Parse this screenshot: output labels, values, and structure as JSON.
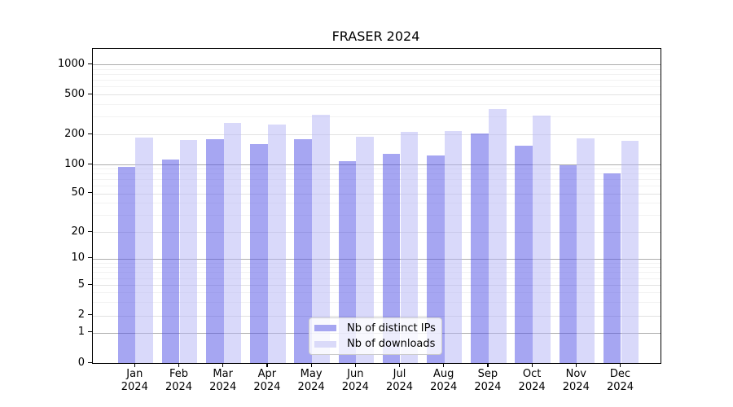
{
  "title": "FRASER 2024",
  "chart_data": {
    "type": "bar",
    "title": "FRASER 2024",
    "categories": [
      "Jan 2024",
      "Feb 2024",
      "Mar 2024",
      "Apr 2024",
      "May 2024",
      "Jun 2024",
      "Jul 2024",
      "Aug 2024",
      "Sep 2024",
      "Oct 2024",
      "Nov 2024",
      "Dec 2024"
    ],
    "series": [
      {
        "name": "Nb of distinct IPs",
        "color": "#4d4de6",
        "alpha": 0.5,
        "values": [
          95,
          113,
          181,
          161,
          180,
          107,
          127,
          123,
          205,
          154,
          98,
          80
        ]
      },
      {
        "name": "Nb of downloads",
        "color": "#b4b4f5",
        "alpha": 0.5,
        "values": [
          185,
          175,
          260,
          250,
          312,
          190,
          213,
          218,
          355,
          306,
          182,
          174
        ]
      }
    ],
    "yscale": "symlog",
    "ylim": [
      0,
      1450
    ],
    "yticks": [
      0,
      1,
      2,
      5,
      10,
      20,
      50,
      100,
      200,
      500,
      1000
    ],
    "minor_yticks": [
      3,
      4,
      6,
      7,
      8,
      9,
      30,
      40,
      60,
      70,
      80,
      90,
      300,
      400,
      600,
      700,
      800,
      900
    ],
    "emphasized_gridlines": [
      1,
      10,
      100,
      1000
    ],
    "grid": true,
    "legend_position": "lower center",
    "legend_swatch_colors": {
      "ips": "#a6a6f1",
      "downloads": "#dadaf9"
    }
  }
}
